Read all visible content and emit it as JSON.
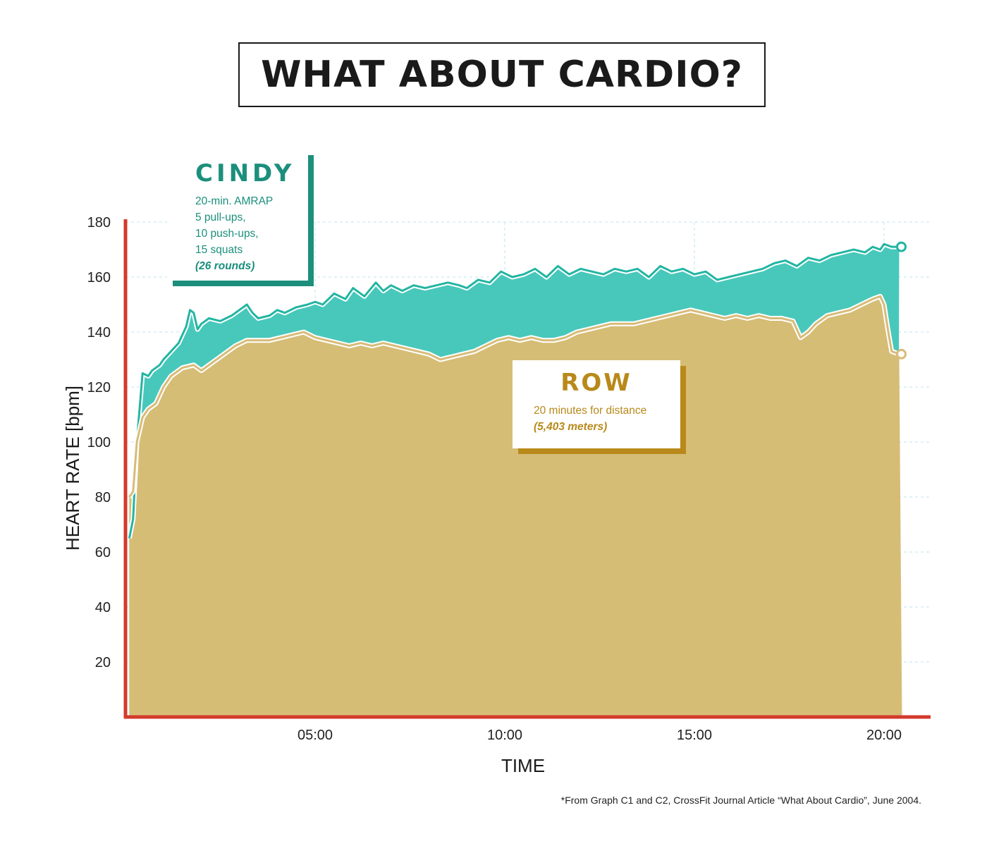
{
  "title": "WHAT ABOUT CARDIO?",
  "footnote": "*From Graph C1 and C2, CrossFit Journal Article “What About Cardio”, June 2004.",
  "colors": {
    "cindy_fill": "#48c8bb",
    "cindy_line": "#22b5a2",
    "row_fill": "#d6bd76",
    "row_line": "#d8bb78",
    "axis": "#d33a2c",
    "cindy_text": "#1b8f7c",
    "row_text": "#b8891a"
  },
  "legend": {
    "cindy": {
      "title": "CINDY",
      "lines": [
        "20-min. AMRAP",
        "5 pull-ups,",
        "10 push-ups,",
        "15 squats"
      ],
      "emphasis": "(26 rounds)"
    },
    "row": {
      "title": "ROW",
      "lines": [
        "20 minutes for distance"
      ],
      "emphasis": "(5,403 meters)"
    }
  },
  "chart_data": {
    "type": "area",
    "xlabel": "TIME",
    "ylabel": "HEART RATE  [bpm]",
    "xlim": [
      0,
      21.2
    ],
    "ylim": [
      0,
      180
    ],
    "y_ticks": [
      20,
      40,
      60,
      80,
      100,
      120,
      140,
      160,
      180
    ],
    "x_ticks": [
      {
        "value": 5,
        "label": "05:00"
      },
      {
        "value": 10,
        "label": "10:00"
      },
      {
        "value": 15,
        "label": "15:00"
      },
      {
        "value": 20,
        "label": "20:00"
      }
    ],
    "grid": true,
    "series": [
      {
        "name": "CINDY",
        "x": [
          0.1,
          0.2,
          0.3,
          0.45,
          0.6,
          0.7,
          0.9,
          1.0,
          1.2,
          1.4,
          1.6,
          1.7,
          1.8,
          1.9,
          2.0,
          2.2,
          2.5,
          2.8,
          3.0,
          3.2,
          3.35,
          3.5,
          3.8,
          4.0,
          4.2,
          4.5,
          4.8,
          5.0,
          5.2,
          5.5,
          5.8,
          6.0,
          6.3,
          6.6,
          6.8,
          7.0,
          7.3,
          7.6,
          7.9,
          8.2,
          8.5,
          8.8,
          9.0,
          9.3,
          9.6,
          9.9,
          10.2,
          10.5,
          10.8,
          11.1,
          11.4,
          11.7,
          12.0,
          12.3,
          12.6,
          12.9,
          13.2,
          13.5,
          13.8,
          14.1,
          14.4,
          14.7,
          15.0,
          15.3,
          15.6,
          15.9,
          16.2,
          16.5,
          16.8,
          17.1,
          17.4,
          17.7,
          18.0,
          18.3,
          18.6,
          18.9,
          19.2,
          19.5,
          19.7,
          19.9,
          20.0,
          20.2,
          20.4
        ],
        "y": [
          65,
          72,
          100,
          125,
          124,
          126,
          128,
          130,
          133,
          136,
          142,
          148,
          147,
          141,
          143,
          145,
          144,
          146,
          148,
          150,
          147,
          145,
          146,
          148,
          147,
          149,
          150,
          151,
          150,
          154,
          152,
          156,
          153,
          158,
          155,
          157,
          155,
          157,
          156,
          157,
          158,
          157,
          156,
          159,
          158,
          162,
          160,
          161,
          163,
          160,
          164,
          161,
          163,
          162,
          161,
          163,
          162,
          163,
          160,
          164,
          162,
          163,
          161,
          162,
          159,
          160,
          161,
          162,
          163,
          165,
          166,
          164,
          167,
          166,
          168,
          169,
          170,
          169,
          171,
          170,
          172,
          171,
          171
        ]
      },
      {
        "name": "ROW",
        "x": [
          0.1,
          0.2,
          0.3,
          0.45,
          0.6,
          0.8,
          1.0,
          1.2,
          1.5,
          1.8,
          2.0,
          2.3,
          2.6,
          2.9,
          3.2,
          3.5,
          3.8,
          4.1,
          4.4,
          4.7,
          5.0,
          5.3,
          5.6,
          5.9,
          6.2,
          6.5,
          6.8,
          7.1,
          7.4,
          7.7,
          8.0,
          8.3,
          8.6,
          8.9,
          9.2,
          9.5,
          9.8,
          10.1,
          10.4,
          10.7,
          11.0,
          11.3,
          11.6,
          11.9,
          12.2,
          12.5,
          12.8,
          13.1,
          13.4,
          13.7,
          14.0,
          14.3,
          14.6,
          14.9,
          15.2,
          15.5,
          15.8,
          16.1,
          16.4,
          16.7,
          17.0,
          17.3,
          17.6,
          17.8,
          18.0,
          18.2,
          18.5,
          18.8,
          19.1,
          19.4,
          19.7,
          19.9,
          20.0,
          20.1,
          20.2,
          20.4
        ],
        "y": [
          80,
          82,
          100,
          109,
          112,
          114,
          120,
          124,
          127,
          128,
          126,
          129,
          132,
          135,
          137,
          137,
          137,
          138,
          139,
          140,
          138,
          137,
          136,
          135,
          136,
          135,
          136,
          135,
          134,
          133,
          132,
          130,
          131,
          132,
          133,
          135,
          137,
          138,
          137,
          138,
          137,
          137,
          138,
          140,
          141,
          142,
          143,
          143,
          143,
          144,
          145,
          146,
          147,
          148,
          147,
          146,
          145,
          146,
          145,
          146,
          145,
          145,
          144,
          138,
          140,
          143,
          146,
          147,
          148,
          150,
          152,
          153,
          150,
          141,
          133,
          132
        ]
      }
    ]
  }
}
